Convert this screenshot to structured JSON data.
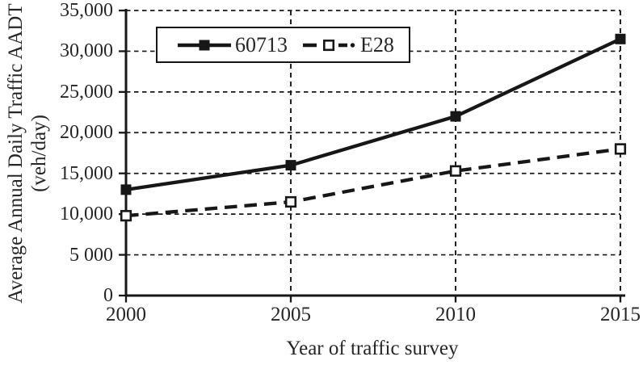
{
  "figure": {
    "background": "#ffffff",
    "text_color": "#262626",
    "line_color": "#171717"
  },
  "chart_data": {
    "type": "line",
    "title": "",
    "xlabel": "Year of traffic survey",
    "ylabel": "Average Annual Daily Traffic AADT (veh/day)",
    "ylabel_lines": [
      "Average Annual Daily Traffic AADT",
      "(veh/day)"
    ],
    "x": [
      2000,
      2005,
      2010,
      2015
    ],
    "xtick_labels": [
      "2000",
      "2005",
      "2010",
      "2015"
    ],
    "xlim": [
      2000,
      2015
    ],
    "ylim": [
      0,
      35000
    ],
    "ytick_values": [
      0,
      5000,
      10000,
      15000,
      20000,
      25000,
      30000,
      35000
    ],
    "ytick_labels": [
      "0",
      "5 000",
      "10,000",
      "15,000",
      "20,000",
      "25,000",
      "30,000",
      "35,000"
    ],
    "grid": "dashed",
    "legend": {
      "position": "top-inside",
      "border": true
    },
    "series": [
      {
        "name": "60713",
        "line_style": "solid",
        "marker": "filled-square",
        "values": [
          13000,
          16000,
          22000,
          31500
        ]
      },
      {
        "name": "E28",
        "line_style": "dashed",
        "marker": "open-square",
        "values": [
          9800,
          11500,
          15300,
          18000
        ]
      }
    ]
  }
}
